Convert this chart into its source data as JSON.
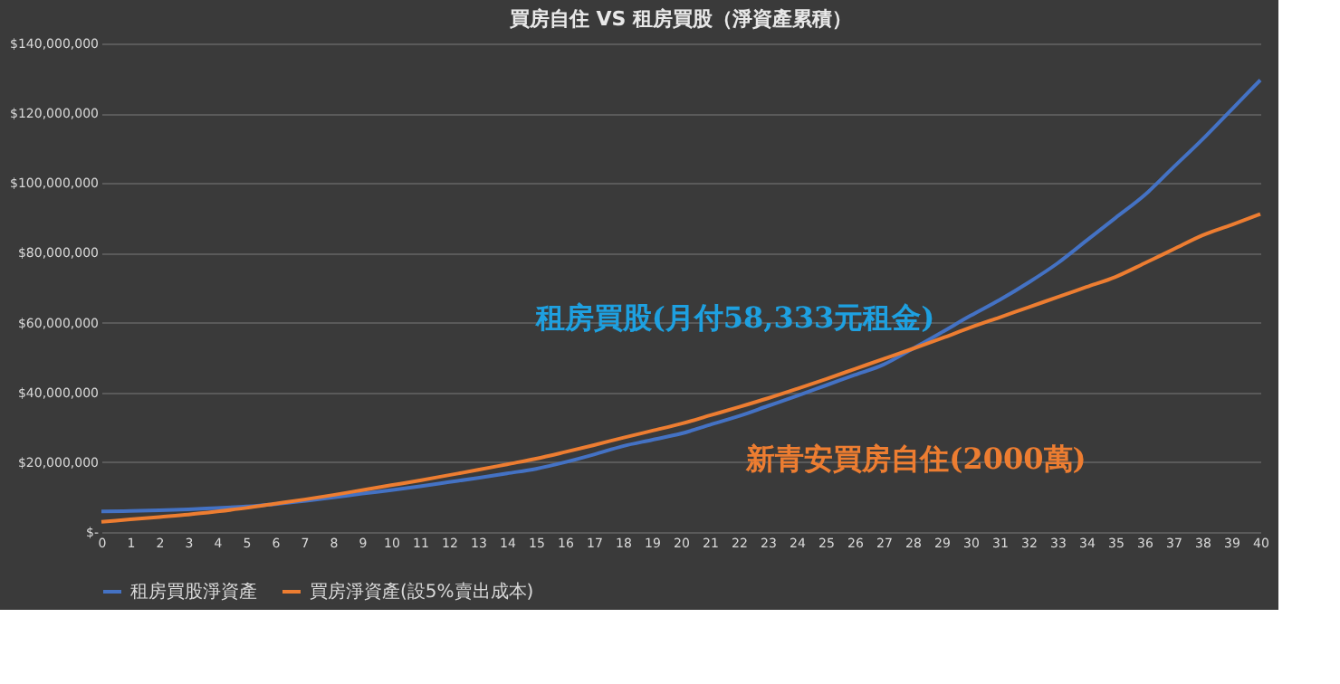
{
  "chart_data": {
    "type": "line",
    "title": "買房自住 VS 租房買股（淨資產累積）",
    "x": [
      0,
      1,
      2,
      3,
      4,
      5,
      6,
      7,
      8,
      9,
      10,
      11,
      12,
      13,
      14,
      15,
      16,
      17,
      18,
      19,
      20,
      21,
      22,
      23,
      24,
      25,
      26,
      27,
      28,
      29,
      30,
      31,
      32,
      33,
      34,
      35,
      36,
      37,
      38,
      39,
      40
    ],
    "series": [
      {
        "name": "租房買股淨資產",
        "color": "#4472c4",
        "values": [
          5900000,
          6000000,
          6200000,
          6500000,
          6900000,
          7300000,
          8000000,
          8900000,
          9900000,
          11000000,
          12000000,
          13100000,
          14300000,
          15500000,
          16800000,
          18100000,
          20000000,
          22200000,
          24600000,
          26400000,
          28200000,
          30700000,
          33200000,
          36100000,
          39000000,
          42000000,
          45000000,
          48000000,
          52500000,
          57200000,
          62000000,
          66500000,
          71500000,
          77000000,
          83500000,
          90000000,
          96500000,
          104500000,
          112500000,
          121000000,
          129500000
        ]
      },
      {
        "name": "買房淨資產(設5%賣出成本)",
        "color": "#ed7d31",
        "values": [
          2900000,
          3600000,
          4300000,
          5000000,
          5900000,
          6900000,
          8100000,
          9300000,
          10600000,
          12000000,
          13400000,
          14800000,
          16300000,
          17800000,
          19400000,
          21000000,
          22900000,
          24900000,
          27000000,
          29000000,
          31000000,
          33400000,
          35800000,
          38300000,
          41000000,
          43800000,
          46700000,
          49600000,
          52500000,
          55500000,
          58600000,
          61500000,
          64400000,
          67300000,
          70200000,
          73100000,
          77000000,
          81000000,
          85000000,
          88000000,
          91100000
        ]
      }
    ],
    "xlim": [
      0,
      40
    ],
    "xticks": [
      0,
      1,
      2,
      3,
      4,
      5,
      6,
      7,
      8,
      9,
      10,
      11,
      12,
      13,
      14,
      15,
      16,
      17,
      18,
      19,
      20,
      21,
      22,
      23,
      24,
      25,
      26,
      27,
      28,
      29,
      30,
      31,
      32,
      33,
      34,
      35,
      36,
      37,
      38,
      39,
      40
    ],
    "ylim": [
      0,
      140000000
    ],
    "yticks": [
      {
        "value": 0,
        "label": "$-"
      },
      {
        "value": 20000000,
        "label": "$20,000,000"
      },
      {
        "value": 40000000,
        "label": "$40,000,000"
      },
      {
        "value": 60000000,
        "label": "$60,000,000"
      },
      {
        "value": 80000000,
        "label": "$80,000,000"
      },
      {
        "value": 100000000,
        "label": "$100,000,000"
      },
      {
        "value": 120000000,
        "label": "$120,000,000"
      },
      {
        "value": 140000000,
        "label": "$140,000,000"
      }
    ],
    "grid": "y",
    "legend": "bottom",
    "marker": "none",
    "line_style": "solid",
    "annotations": [
      "租房買股(月付58,333元租金)",
      "新青安買房自住(2000萬)"
    ]
  }
}
